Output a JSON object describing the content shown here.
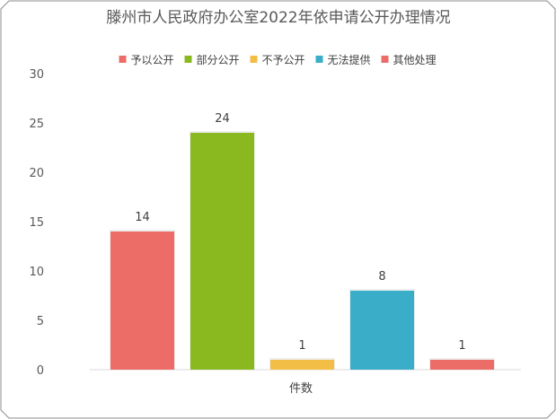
{
  "chart_data": {
    "type": "bar",
    "title": "滕州市人民政府办公室2022年依申请公开办理情况",
    "xlabel": "件数",
    "ylabel": "",
    "ylim": [
      0,
      30
    ],
    "yticks": [
      0,
      5,
      10,
      15,
      20,
      25,
      30
    ],
    "grid": false,
    "legend_position": "top",
    "categories": [
      "件数"
    ],
    "series": [
      {
        "name": "予以公开",
        "values": [
          14
        ],
        "color": "#EC6D68"
      },
      {
        "name": "部分公开",
        "values": [
          24
        ],
        "color": "#8AB81F"
      },
      {
        "name": "不予公开",
        "values": [
          1
        ],
        "color": "#F2BE45"
      },
      {
        "name": "无法提供",
        "values": [
          8
        ],
        "color": "#3AADC9"
      },
      {
        "name": "其他处理",
        "values": [
          1
        ],
        "color": "#EC6D68"
      }
    ]
  }
}
